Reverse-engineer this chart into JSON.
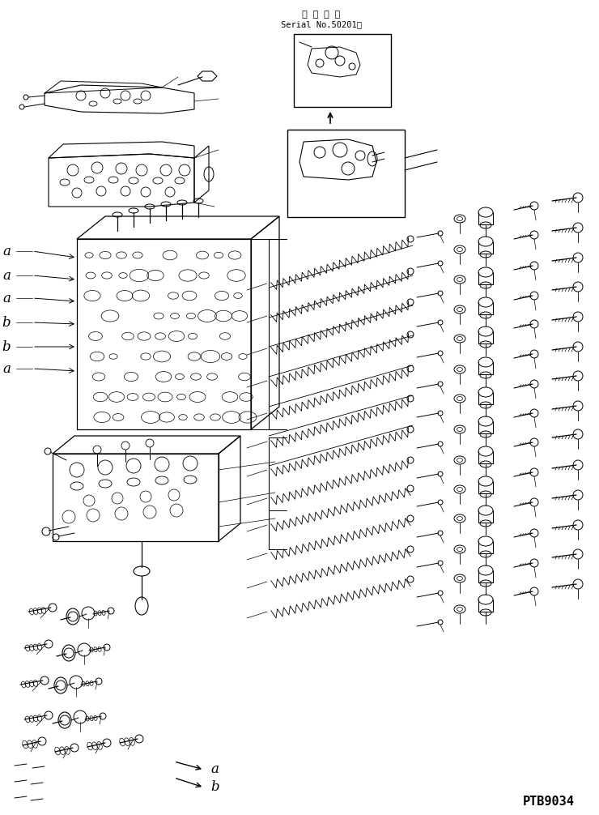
{
  "bg_color": "#ffffff",
  "line_color": "#000000",
  "fig_width": 7.4,
  "fig_height": 10.06,
  "dpi": 100,
  "title_jp": "適 用 号 機",
  "title_serial": "Serial No.50201～",
  "part_number": "PTB9034"
}
